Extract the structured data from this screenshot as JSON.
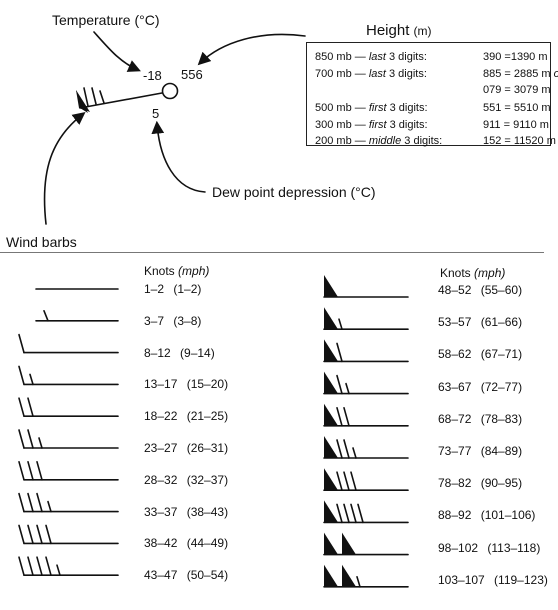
{
  "station": {
    "temperature_label": "Temperature (°C)",
    "height_label": "Height",
    "height_unit": "(m)",
    "dewpoint_label": "Dew point depression (°C)",
    "temperature_value": "-18",
    "height_value": "556",
    "dewpoint_value": "5"
  },
  "height_box": {
    "rows": [
      {
        "level": "850 mb —",
        "em": "last",
        "rest": "3 digits:",
        "value": "390 =1390 m",
        "extra": ""
      },
      {
        "level": "700 mb —",
        "em": "last",
        "rest": "3 digits:",
        "value": "885 = 2885 m",
        "extra": "or"
      },
      {
        "level": "",
        "em": "",
        "rest": "",
        "value": "079 = 3079 m",
        "extra": ""
      },
      {
        "level": "500 mb —",
        "em": "first",
        "rest": "3 digits:",
        "value": "551 = 5510 m",
        "extra": ""
      },
      {
        "level": "300 mb —",
        "em": "first",
        "rest": "3 digits:",
        "value": "911 = 9110 m",
        "extra": ""
      },
      {
        "level": "200 mb —",
        "em": "middle",
        "rest": "3 digits:",
        "value": "152 = 11520 m",
        "extra": ""
      }
    ]
  },
  "wind_barbs": {
    "title": "Wind barbs",
    "header_knots": "Knots",
    "header_mph": "(mph)",
    "left": [
      {
        "knots": "1–2",
        "mph": "(1–2)"
      },
      {
        "knots": "3–7",
        "mph": "(3–8)"
      },
      {
        "knots": "8–12",
        "mph": "(9–14)"
      },
      {
        "knots": "13–17",
        "mph": "(15–20)"
      },
      {
        "knots": "18–22",
        "mph": "(21–25)"
      },
      {
        "knots": "23–27",
        "mph": "(26–31)"
      },
      {
        "knots": "28–32",
        "mph": "(32–37)"
      },
      {
        "knots": "33–37",
        "mph": "(38–43)"
      },
      {
        "knots": "38–42",
        "mph": "(44–49)"
      },
      {
        "knots": "43–47",
        "mph": "(50–54)"
      }
    ],
    "right": [
      {
        "knots": "48–52",
        "mph": "(55–60)"
      },
      {
        "knots": "53–57",
        "mph": "(61–66)"
      },
      {
        "knots": "58–62",
        "mph": "(67–71)"
      },
      {
        "knots": "63–67",
        "mph": "(72–77)"
      },
      {
        "knots": "68–72",
        "mph": "(78–83)"
      },
      {
        "knots": "73–77",
        "mph": "(84–89)"
      },
      {
        "knots": "78–82",
        "mph": "(90–95)"
      },
      {
        "knots": "88–92",
        "mph": "(101–106)"
      },
      {
        "knots": "98–102",
        "mph": "(113–118)"
      },
      {
        "knots": "103–107",
        "mph": "(119–123)"
      }
    ]
  }
}
